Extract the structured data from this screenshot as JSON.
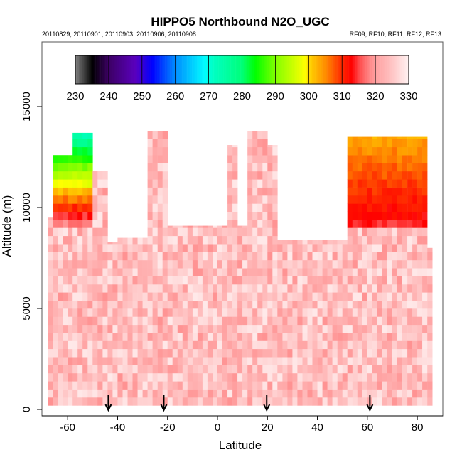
{
  "chart_data": {
    "type": "heatmap",
    "title": "HIPPO5 Northbound N2O_UGC",
    "subtitle_left": "20110829, 20110901, 20110903, 20110906, 20110908",
    "subtitle_right": "RF09, RF10, RF11, RF12, RF13",
    "xlabel": "Latitude",
    "ylabel": "Altitude (m)",
    "xlim": [
      -70,
      90
    ],
    "ylim": [
      0,
      17800
    ],
    "xticks": [
      -60,
      -40,
      -20,
      0,
      20,
      40,
      60,
      80
    ],
    "xtick_labels": [
      "-60",
      "-40",
      "-20",
      "0",
      "20",
      "40",
      "60",
      "80"
    ],
    "yticks": [
      0,
      5000,
      10000,
      15000
    ],
    "ytick_labels": [
      "0",
      "5000",
      "10000",
      "15000"
    ],
    "colorbar": {
      "range": [
        230,
        330
      ],
      "ticks": [
        230,
        240,
        250,
        260,
        270,
        280,
        290,
        300,
        310,
        320,
        330
      ],
      "tick_labels": [
        "230",
        "240",
        "250",
        "260",
        "270",
        "280",
        "290",
        "300",
        "310",
        "320",
        "330"
      ],
      "location": "top"
    },
    "flight_markers_lat": [
      -43.7,
      -21.5,
      19.7,
      61.0
    ],
    "column_tops": [
      {
        "lat_from": -68,
        "lat_to": -66,
        "top": 9500
      },
      {
        "lat_from": -66,
        "lat_to": -58,
        "top": 12600
      },
      {
        "lat_from": -58,
        "lat_to": -50,
        "top": 13700
      },
      {
        "lat_from": -50,
        "lat_to": -44,
        "top": 11800
      },
      {
        "lat_from": -44,
        "lat_to": -40,
        "top": 8300
      },
      {
        "lat_from": -40,
        "lat_to": -28,
        "top": 8500
      },
      {
        "lat_from": -28,
        "lat_to": -20,
        "top": 13800
      },
      {
        "lat_from": -20,
        "lat_to": 4,
        "top": 9100
      },
      {
        "lat_from": 4,
        "lat_to": 9,
        "top": 13100
      },
      {
        "lat_from": 9,
        "lat_to": 13,
        "top": 9100
      },
      {
        "lat_from": 13,
        "lat_to": 20,
        "top": 13800
      },
      {
        "lat_from": 20,
        "lat_to": 25,
        "top": 13100
      },
      {
        "lat_from": 25,
        "lat_to": 52,
        "top": 8400
      },
      {
        "lat_from": 52,
        "lat_to": 84,
        "top": 13500
      },
      {
        "lat_from": 84,
        "lat_to": 87,
        "top": 8000
      }
    ],
    "background_value": 324,
    "background_spread": 5,
    "stratospheric_regions": [
      {
        "lat_from": -66,
        "lat_to": -50,
        "alt_from": 9000,
        "value_at_base": 318,
        "gradient_per_km": -10
      },
      {
        "lat_from": 52,
        "lat_to": 84,
        "alt_from": 9000,
        "value_at_base": 314,
        "gradient_per_km": -2.5
      }
    ],
    "grid": {
      "lat_step": 2,
      "alt_step": 400
    }
  }
}
